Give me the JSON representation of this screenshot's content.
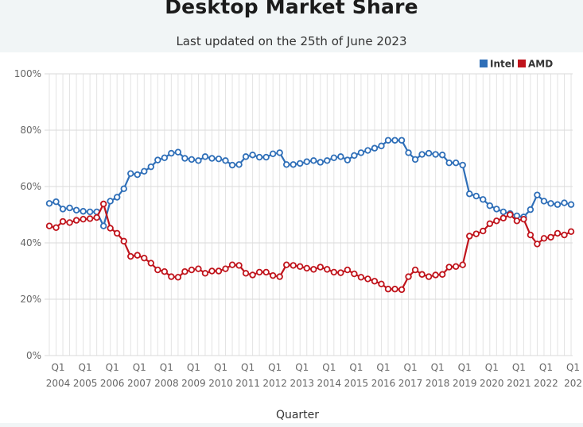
{
  "header": {
    "title": "Desktop Market Share",
    "subtitle": "Last updated on the 25th of June 2023"
  },
  "chart_data": {
    "type": "line",
    "title": "Desktop Market Share",
    "subtitle": "Last updated on the 25th of June 2023",
    "xlabel": "Quarter",
    "ylabel": "",
    "ylim": [
      0,
      100
    ],
    "y_ticks": [
      "0%",
      "20%",
      "40%",
      "60%",
      "80%",
      "100%"
    ],
    "x_years": [
      "2004",
      "2005",
      "2006",
      "2007",
      "2008",
      "2009",
      "2010",
      "2011",
      "2012",
      "2013",
      "2014",
      "2015",
      "2016",
      "2017",
      "2018",
      "2019",
      "2020",
      "2021",
      "2022",
      "202"
    ],
    "x_quarter_label": "Q1",
    "grid": true,
    "legend_position": "top-right",
    "series": [
      {
        "name": "Intel",
        "color": "#2f6fb8",
        "start": "2003 Q4",
        "values": [
          54,
          54.6,
          52,
          52.4,
          51.6,
          51.2,
          51,
          51,
          46,
          54.8,
          56.2,
          59.2,
          64.6,
          64.2,
          65.4,
          67,
          69.4,
          70.2,
          71.8,
          72.2,
          70,
          69.6,
          69.2,
          70.6,
          70,
          69.8,
          69.2,
          67.6,
          67.8,
          70.6,
          71.2,
          70.4,
          70.4,
          71.6,
          72,
          67.8,
          67.8,
          68.2,
          68.8,
          69.2,
          68.6,
          69.2,
          70.2,
          70.6,
          69.4,
          71,
          72,
          72.8,
          73.6,
          74.4,
          76.4,
          76.4,
          76.4,
          72,
          69.6,
          71.4,
          71.8,
          71.4,
          71.2,
          68.4,
          68.4,
          67.6,
          57.4,
          56.6,
          55.4,
          53.2,
          52,
          51,
          50.4,
          49.6,
          49.2,
          51.8,
          57,
          54.8,
          54,
          53.6,
          54.2,
          53.6
        ]
      },
      {
        "name": "AMD",
        "color": "#c0141c",
        "start": "2003 Q4",
        "values": [
          46,
          45.4,
          47.6,
          47.2,
          48,
          48.4,
          48.6,
          49,
          53.8,
          45.2,
          43.4,
          40.6,
          35.2,
          35.6,
          34.6,
          32.8,
          30.4,
          29.8,
          28,
          27.8,
          29.8,
          30.4,
          30.8,
          29.2,
          30,
          30,
          30.8,
          32.2,
          32,
          29.2,
          28.6,
          29.6,
          29.6,
          28.4,
          28,
          32.2,
          32,
          31.6,
          31,
          30.6,
          31.4,
          30.6,
          29.6,
          29.4,
          30.4,
          29,
          27.8,
          27.2,
          26.4,
          25.4,
          23.6,
          23.6,
          23.4,
          28,
          30.4,
          28.8,
          28,
          28.6,
          28.8,
          31.4,
          31.6,
          32.2,
          42.4,
          43.2,
          44.2,
          46.8,
          47.8,
          48.8,
          50,
          47.8,
          48.4,
          42.8,
          39.6,
          41.6,
          42,
          43.4,
          42.8,
          44
        ]
      }
    ]
  }
}
